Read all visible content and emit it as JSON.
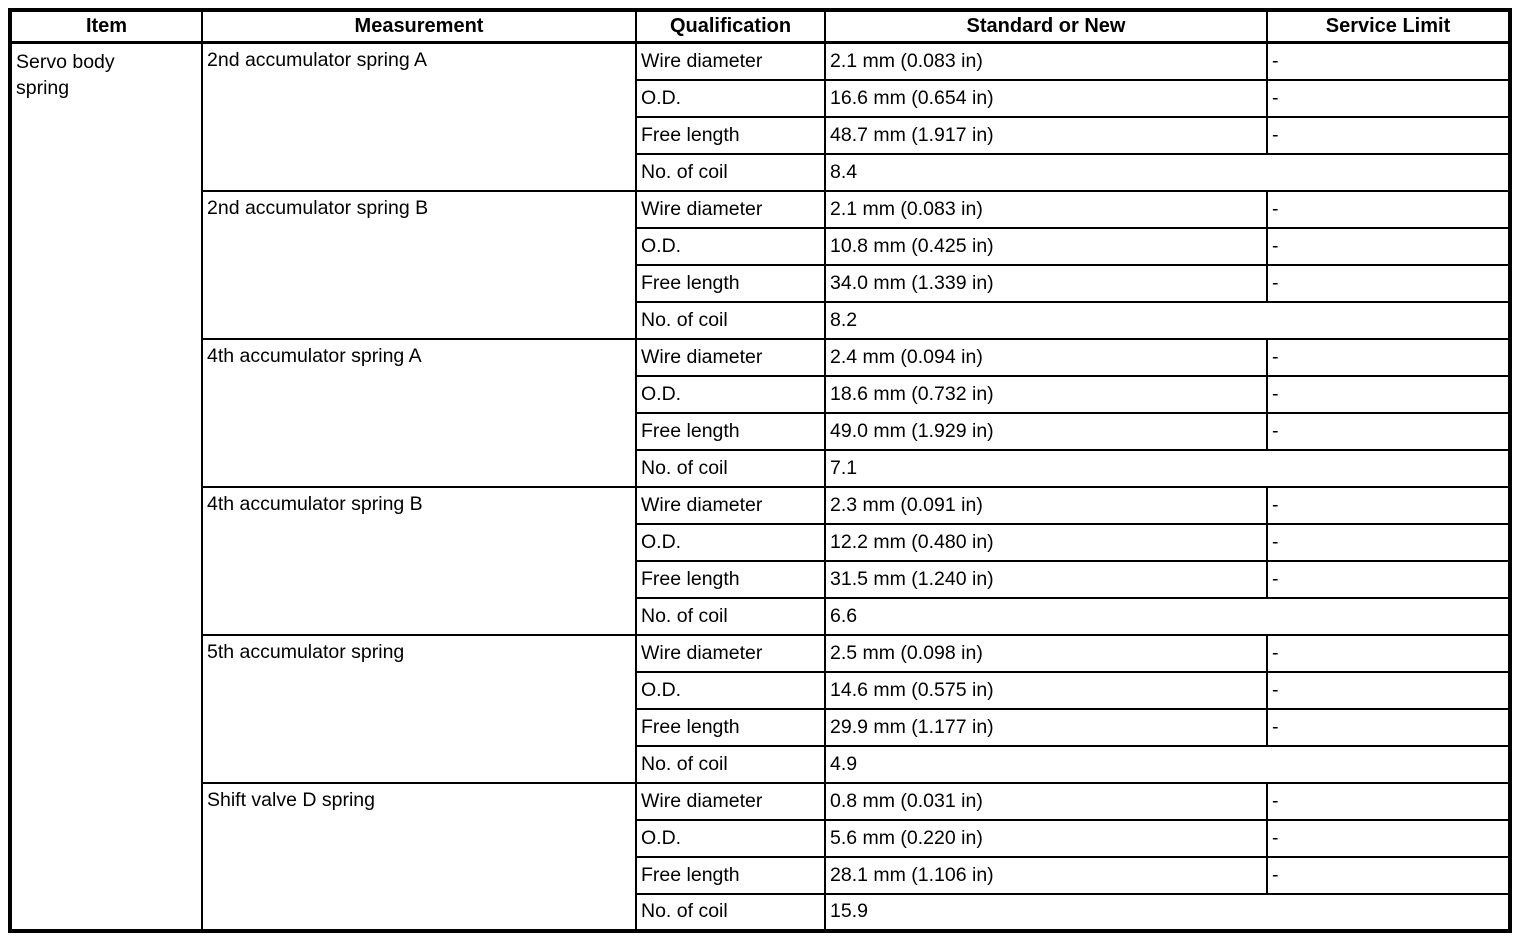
{
  "table": {
    "headers": [
      "Item",
      "Measurement",
      "Qualification",
      "Standard or New",
      "Service Limit"
    ],
    "item": "Servo body spring",
    "groups": [
      {
        "measurement": "2nd accumulator spring A",
        "rows": [
          {
            "qualification": "Wire diameter",
            "standard": "2.1 mm (0.083 in)",
            "service_limit": "-"
          },
          {
            "qualification": "O.D.",
            "standard": "16.6 mm (0.654 in)",
            "service_limit": "-"
          },
          {
            "qualification": "Free length",
            "standard": "48.7 mm (1.917 in)",
            "service_limit": "-"
          },
          {
            "qualification": "No. of coil",
            "standard": "8.4",
            "service_limit": null
          }
        ]
      },
      {
        "measurement": "2nd accumulator spring B",
        "rows": [
          {
            "qualification": "Wire diameter",
            "standard": "2.1 mm (0.083 in)",
            "service_limit": "-"
          },
          {
            "qualification": "O.D.",
            "standard": "10.8 mm (0.425 in)",
            "service_limit": "-"
          },
          {
            "qualification": "Free length",
            "standard": "34.0 mm (1.339 in)",
            "service_limit": "-"
          },
          {
            "qualification": "No. of coil",
            "standard": "8.2",
            "service_limit": null
          }
        ]
      },
      {
        "measurement": "4th accumulator spring A",
        "rows": [
          {
            "qualification": "Wire diameter",
            "standard": "2.4 mm (0.094 in)",
            "service_limit": "-"
          },
          {
            "qualification": "O.D.",
            "standard": "18.6 mm (0.732 in)",
            "service_limit": "-"
          },
          {
            "qualification": "Free length",
            "standard": "49.0 mm (1.929 in)",
            "service_limit": "-"
          },
          {
            "qualification": "No. of coil",
            "standard": "7.1",
            "service_limit": null
          }
        ]
      },
      {
        "measurement": "4th accumulator spring B",
        "rows": [
          {
            "qualification": "Wire diameter",
            "standard": "2.3 mm (0.091 in)",
            "service_limit": "-"
          },
          {
            "qualification": "O.D.",
            "standard": "12.2 mm (0.480 in)",
            "service_limit": "-"
          },
          {
            "qualification": "Free length",
            "standard": "31.5 mm (1.240 in)",
            "service_limit": "-"
          },
          {
            "qualification": "No. of coil",
            "standard": "6.6",
            "service_limit": null
          }
        ]
      },
      {
        "measurement": "5th accumulator spring",
        "rows": [
          {
            "qualification": "Wire diameter",
            "standard": "2.5 mm (0.098 in)",
            "service_limit": "-"
          },
          {
            "qualification": "O.D.",
            "standard": "14.6 mm (0.575 in)",
            "service_limit": "-"
          },
          {
            "qualification": "Free length",
            "standard": "29.9 mm (1.177 in)",
            "service_limit": "-"
          },
          {
            "qualification": "No. of coil",
            "standard": "4.9",
            "service_limit": null
          }
        ]
      },
      {
        "measurement": "Shift valve D spring",
        "rows": [
          {
            "qualification": "Wire diameter",
            "standard": "0.8 mm (0.031 in)",
            "service_limit": "-"
          },
          {
            "qualification": "O.D.",
            "standard": "5.6 mm (0.220 in)",
            "service_limit": "-"
          },
          {
            "qualification": "Free length",
            "standard": "28.1 mm (1.106 in)",
            "service_limit": "-"
          },
          {
            "qualification": "No. of coil",
            "standard": "15.9",
            "service_limit": null
          }
        ]
      }
    ]
  }
}
